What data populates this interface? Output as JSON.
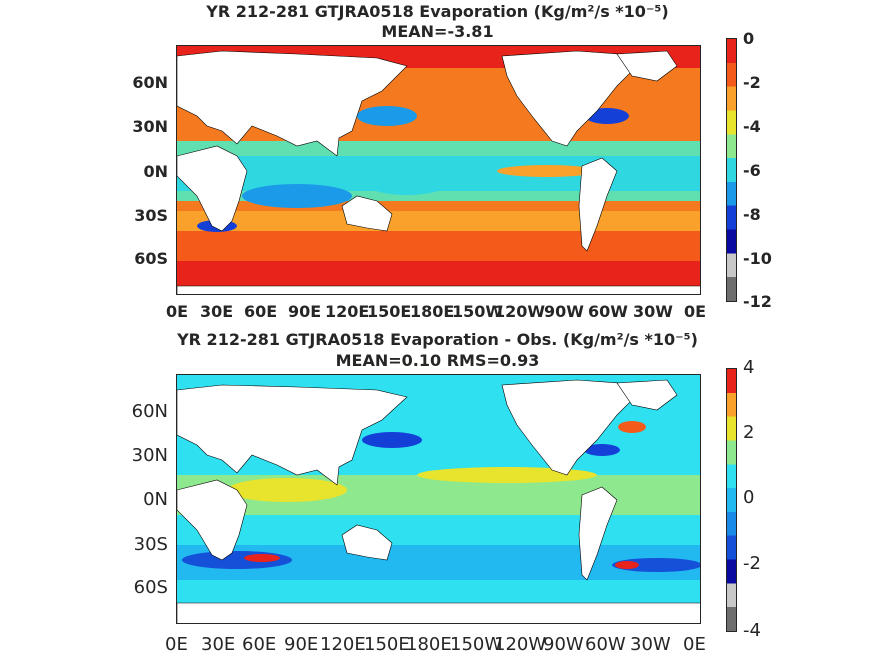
{
  "panels": [
    {
      "title_line1": "YR 212-281 GTJRA0518  Evaporation (Kg/m²/s *10⁻⁵)",
      "title_line2": "MEAN=-3.81",
      "lat_ticks": [
        "60N",
        "30N",
        "0N",
        "30S",
        "60S"
      ],
      "lon_ticks": [
        "0E",
        "30E",
        "60E",
        "90E",
        "120E",
        "150E",
        "180E",
        "150W",
        "120W",
        "90W",
        "60W",
        "30W",
        "0E"
      ],
      "colorbar_ticks": [
        "0",
        "-2",
        "-4",
        "-6",
        "-8",
        "-10",
        "-12"
      ],
      "colorbar_colors": [
        "#e8231b",
        "#f45a1a",
        "#f9a12a",
        "#e8e32c",
        "#8ee88e",
        "#2fd8e0",
        "#1a9ae8",
        "#1540d8",
        "#0a0aa0",
        "#c8c8c8",
        "#6e6e6e"
      ]
    },
    {
      "title_line1": "YR 212-281 GTJRA0518 Evaporation - Obs. (Kg/m²/s *10⁻⁵)",
      "title_line2": "MEAN=0.10   RMS=0.93",
      "lat_ticks": [
        "60N",
        "30N",
        "0N",
        "30S",
        "60S"
      ],
      "lon_ticks": [
        "0E",
        "30E",
        "60E",
        "90E",
        "120E",
        "150E",
        "180E",
        "150W",
        "120W",
        "90W",
        "60W",
        "30W",
        "0E"
      ],
      "colorbar_ticks": [
        "4",
        "2",
        "0",
        "-2",
        "-4"
      ],
      "colorbar_colors": [
        "#e8231b",
        "#f9a12a",
        "#e8e32c",
        "#8ee88e",
        "#2fe0f0",
        "#22b8f0",
        "#1a8ae8",
        "#1550d8",
        "#0a0aa0",
        "#c8c8c8",
        "#6e6e6e"
      ]
    }
  ]
}
